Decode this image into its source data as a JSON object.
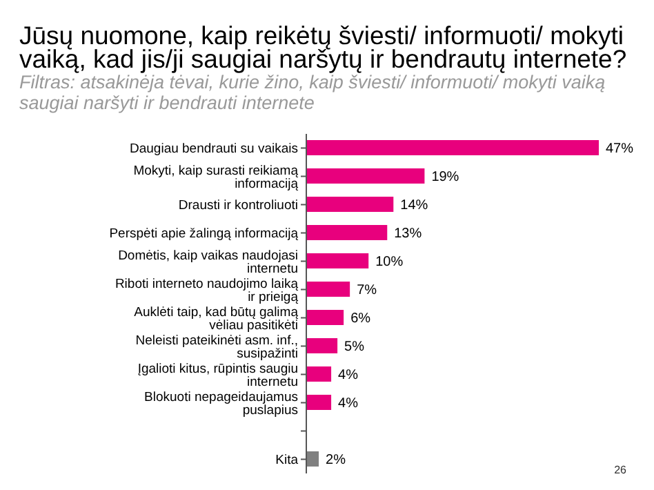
{
  "chart_data": {
    "type": "bar",
    "orientation": "horizontal",
    "title": "Jūsų nuomone, kaip reikėtų šviesti/ informuoti/  mokyti vaiką, kad jis/ji  saugiai naršytų ir bendrautų internete?",
    "subtitle": "Filtras: atsakinėja tėvai, kurie žino, kaip šviesti/ informuoti/ mokyti vaiką saugiai naršyti ir bendrauti internete",
    "categories": [
      "Daugiau bendrauti su vaikais",
      "Mokyti, kaip surasti reikiamą informaciją",
      "Drausti ir kontroliuoti",
      "Perspėti apie žalingą informaciją",
      "Domėtis, kaip vaikas naudojasi internetu",
      "Riboti interneto naudojimo laiką ir prieigą",
      "Auklėti taip, kad būtų galimą vėliau pasitikėti",
      "Neleisti pateikinėti asm. inf., susipažinti",
      "Įgalioti kitus, rūpintis saugiu internetu",
      "Blokuoti nepageidaujamus puslapius",
      null,
      "Kita"
    ],
    "values": [
      47,
      19,
      14,
      13,
      10,
      7,
      6,
      5,
      4,
      4,
      null,
      2
    ],
    "value_labels": [
      "47%",
      "19%",
      "14%",
      "13%",
      "10%",
      "7%",
      "6%",
      "5%",
      "4%",
      "4%",
      null,
      "2%"
    ],
    "colors": [
      "#e8007d",
      "#e8007d",
      "#e8007d",
      "#e8007d",
      "#e8007d",
      "#e8007d",
      "#e8007d",
      "#e8007d",
      "#e8007d",
      "#e8007d",
      "#e8007d",
      "#808080"
    ],
    "annotations": [
      "26"
    ]
  }
}
